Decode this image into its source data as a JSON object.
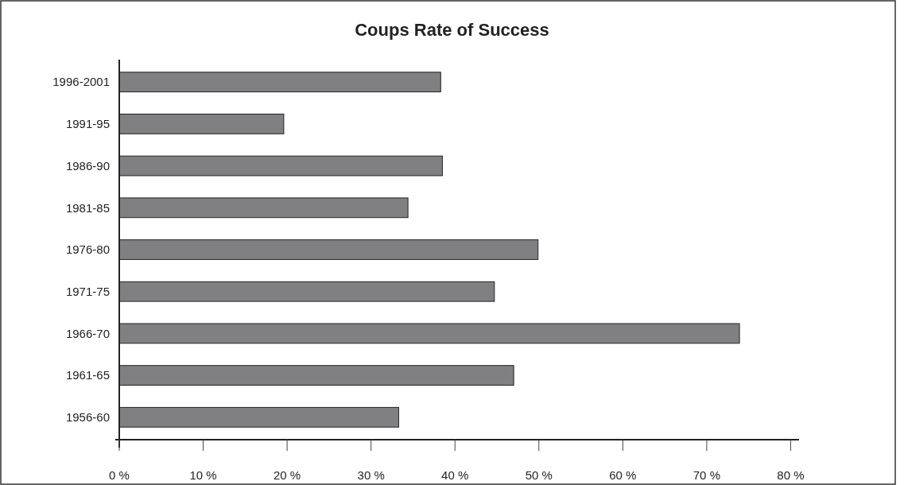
{
  "chart_data": {
    "type": "bar",
    "orientation": "horizontal",
    "title": "Coups Rate of Success",
    "categories": [
      "1996-2001",
      "1991-95",
      "1986-90",
      "1981-85",
      "1976-80",
      "1971-75",
      "1966-70",
      "1961-65",
      "1956-60"
    ],
    "values": [
      38.3,
      19.6,
      38.5,
      34.4,
      49.9,
      44.7,
      73.9,
      47.0,
      33.3
    ],
    "color": "#808083",
    "xlim": [
      0,
      81
    ],
    "xticks": [
      {
        "value": 0,
        "label": "0 %"
      },
      {
        "value": 10,
        "label": "10 %"
      },
      {
        "value": 20,
        "label": "20 %"
      },
      {
        "value": 30,
        "label": "30 %"
      },
      {
        "value": 40,
        "label": "40 %"
      },
      {
        "value": 50,
        "label": "50 %"
      },
      {
        "value": 60,
        "label": "60 %"
      },
      {
        "value": 70,
        "label": "70 %"
      },
      {
        "value": 80,
        "label": "80 %"
      }
    ],
    "grid": false
  }
}
